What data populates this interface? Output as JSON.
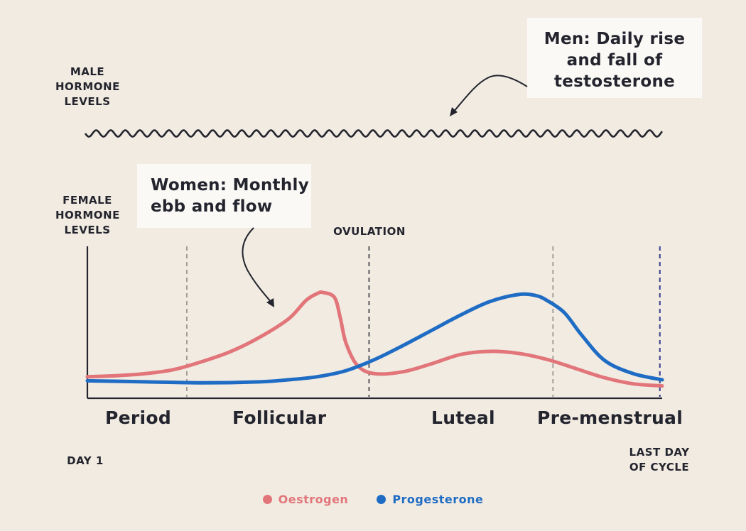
{
  "colors": {
    "oestrogen": "#e2757a",
    "progesterone": "#1f6cc4",
    "ink": "#23242d"
  },
  "labels": {
    "male_levels": [
      "MALE",
      "HORMONE",
      "LEVELS"
    ],
    "female_levels": [
      "FEMALE",
      "HORMONE",
      "LEVELS"
    ],
    "ovulation": "OVULATION",
    "day1": "DAY 1",
    "last_day": [
      "LAST DAY",
      "OF CYCLE"
    ]
  },
  "callouts": {
    "men": [
      "Men: Daily rise",
      "and fall of",
      "testosterone"
    ],
    "women": [
      "Women: Monthly",
      "ebb and flow"
    ]
  },
  "phases": [
    "Period",
    "Follicular",
    "Luteal",
    "Pre-menstrual"
  ],
  "chart_data": {
    "type": "line",
    "x_axis": "day of cycle (relative, 0 = Day 1, 1 = last day of cycle)",
    "xlim": [
      0,
      1
    ],
    "ylim": [
      0,
      1
    ],
    "phase_boundaries": [
      0.173,
      0.49,
      0.81,
      0.996
    ],
    "series": [
      {
        "name": "Oestrogen",
        "color": "#e2757a",
        "x": [
          0,
          0.05,
          0.1,
          0.15,
          0.2,
          0.25,
          0.3,
          0.35,
          0.38,
          0.4,
          0.41,
          0.43,
          0.44,
          0.45,
          0.47,
          0.5,
          0.55,
          0.6,
          0.65,
          0.7,
          0.75,
          0.8,
          0.85,
          0.9,
          0.95,
          1.0
        ],
        "y": [
          0.17,
          0.18,
          0.2,
          0.24,
          0.32,
          0.42,
          0.56,
          0.74,
          0.92,
          0.99,
          1.0,
          0.95,
          0.75,
          0.5,
          0.28,
          0.2,
          0.22,
          0.3,
          0.39,
          0.42,
          0.4,
          0.34,
          0.25,
          0.16,
          0.1,
          0.08
        ]
      },
      {
        "name": "Progesterone",
        "color": "#1f6cc4",
        "x": [
          0,
          0.1,
          0.2,
          0.3,
          0.35,
          0.4,
          0.45,
          0.5,
          0.55,
          0.6,
          0.65,
          0.7,
          0.75,
          0.78,
          0.8,
          0.83,
          0.86,
          0.9,
          0.95,
          1.0
        ],
        "y": [
          0.13,
          0.12,
          0.11,
          0.12,
          0.14,
          0.17,
          0.23,
          0.34,
          0.48,
          0.63,
          0.78,
          0.91,
          0.98,
          0.97,
          0.92,
          0.8,
          0.58,
          0.33,
          0.2,
          0.14
        ]
      }
    ],
    "legend": "bottom-center",
    "grid": false
  }
}
